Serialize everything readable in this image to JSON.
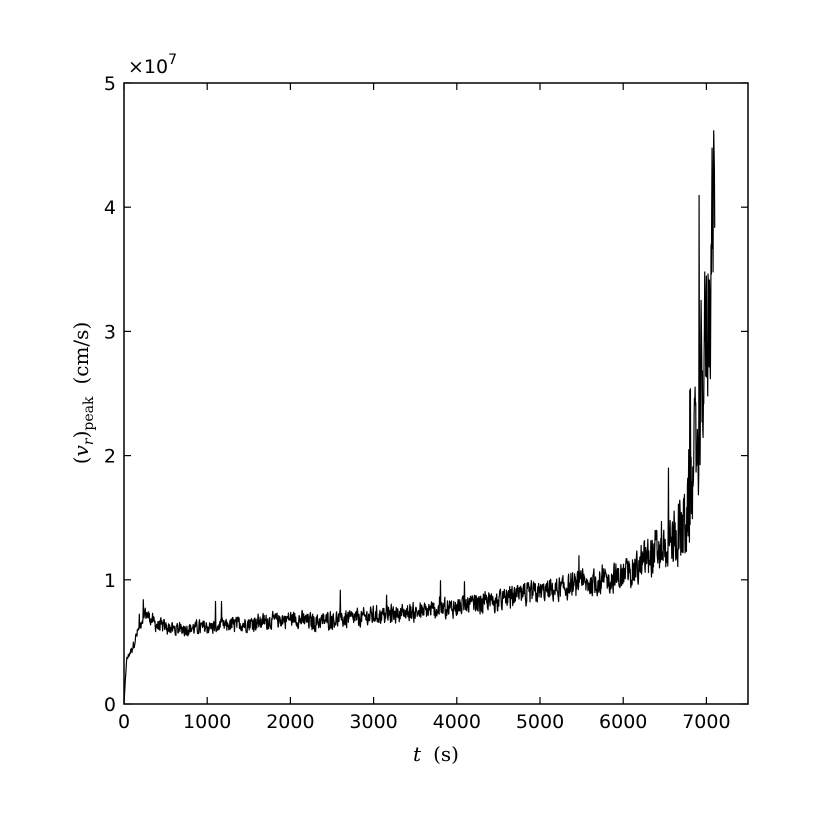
{
  "chart_data": {
    "type": "line",
    "xlabel": "t (s)",
    "ylabel": "(v_r)_peak (cm/s)",
    "y_multiplier": "×10^7",
    "xlim": [
      0,
      7500
    ],
    "ylim": [
      0,
      50000000
    ],
    "x_ticks": [
      "0",
      "1000",
      "2000",
      "3000",
      "4000",
      "5000",
      "6000",
      "7000"
    ],
    "y_ticks": [
      "0",
      "1",
      "2",
      "3",
      "4",
      "5"
    ],
    "grid": false,
    "series": [
      {
        "color": "#000000",
        "x": [
          0,
          30,
          60,
          100,
          150,
          200,
          250,
          300,
          400,
          500,
          600,
          800,
          1000,
          1200,
          1500,
          1800,
          2000,
          2300,
          2500,
          2800,
          3000,
          3300,
          3500,
          3800,
          4000,
          4200,
          4400,
          4600,
          4800,
          5000,
          5200,
          5400,
          5600,
          5800,
          6000,
          6100,
          6200,
          6300,
          6400,
          6500,
          6600,
          6700,
          6800,
          6850,
          6900,
          6950,
          7000,
          7050,
          7100
        ],
        "y": [
          0,
          3500000,
          4000000,
          4500000,
          5500000,
          6500000,
          7400000,
          7000000,
          6300000,
          6200000,
          6000000,
          6100000,
          6200000,
          6300000,
          6500000,
          6700000,
          6900000,
          6600000,
          6800000,
          6900000,
          7100000,
          7300000,
          7400000,
          7600000,
          7800000,
          8000000,
          8200000,
          8500000,
          8800000,
          9000000,
          9200000,
          9500000,
          9700000,
          10000000,
          10300000,
          10800000,
          11000000,
          11800000,
          12200000,
          12700000,
          13200000,
          14000000,
          16000000,
          19000000,
          22000000,
          26000000,
          30000000,
          35000000,
          42000000
        ],
        "noise": [
          0,
          300000,
          400000,
          500000,
          700000,
          700000,
          800000,
          800000,
          900000,
          900000,
          900000,
          900000,
          900000,
          900000,
          1000000,
          1000000,
          1000000,
          1100000,
          1100000,
          1100000,
          1100000,
          1100000,
          1100000,
          1200000,
          1200000,
          1300000,
          1300000,
          1300000,
          1400000,
          1400000,
          1500000,
          1500000,
          1600000,
          1700000,
          1800000,
          2000000,
          2300000,
          2800000,
          3000000,
          3300000,
          3800000,
          4500000,
          6500000,
          8000000,
          9500000,
          10500000,
          11500000,
          12000000,
          12000000
        ]
      }
    ]
  }
}
